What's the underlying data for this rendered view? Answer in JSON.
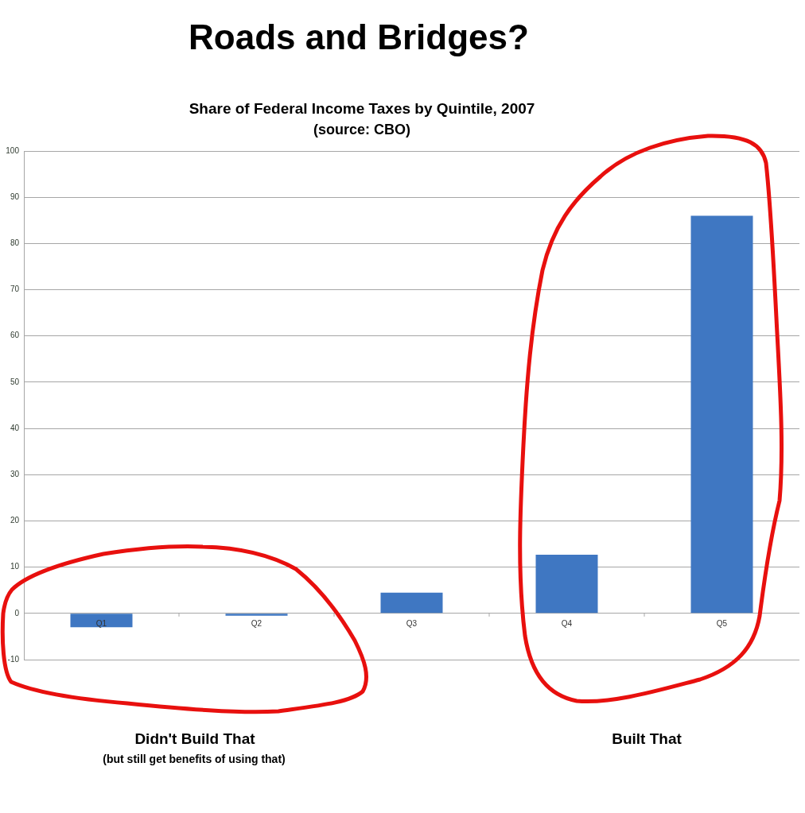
{
  "chart_data": {
    "type": "bar",
    "title": "Roads and Bridges?",
    "subtitle": "Share of Federal Income Taxes by Quintile, 2007",
    "categories": [
      "Q1",
      "Q2",
      "Q3",
      "Q4",
      "Q5"
    ],
    "values": [
      -3,
      -0.5,
      4.5,
      12.7,
      86
    ],
    "color": "#3f77c2",
    "ylim": [
      -10,
      100
    ],
    "yticks": [
      -10,
      0,
      10,
      20,
      30,
      40,
      50,
      60,
      70,
      80,
      90,
      100
    ],
    "grid": "y",
    "annotations": [
      "(source: CBO)",
      "Didn't Build That",
      "(but still get benefits of using that)",
      "Built That"
    ]
  }
}
